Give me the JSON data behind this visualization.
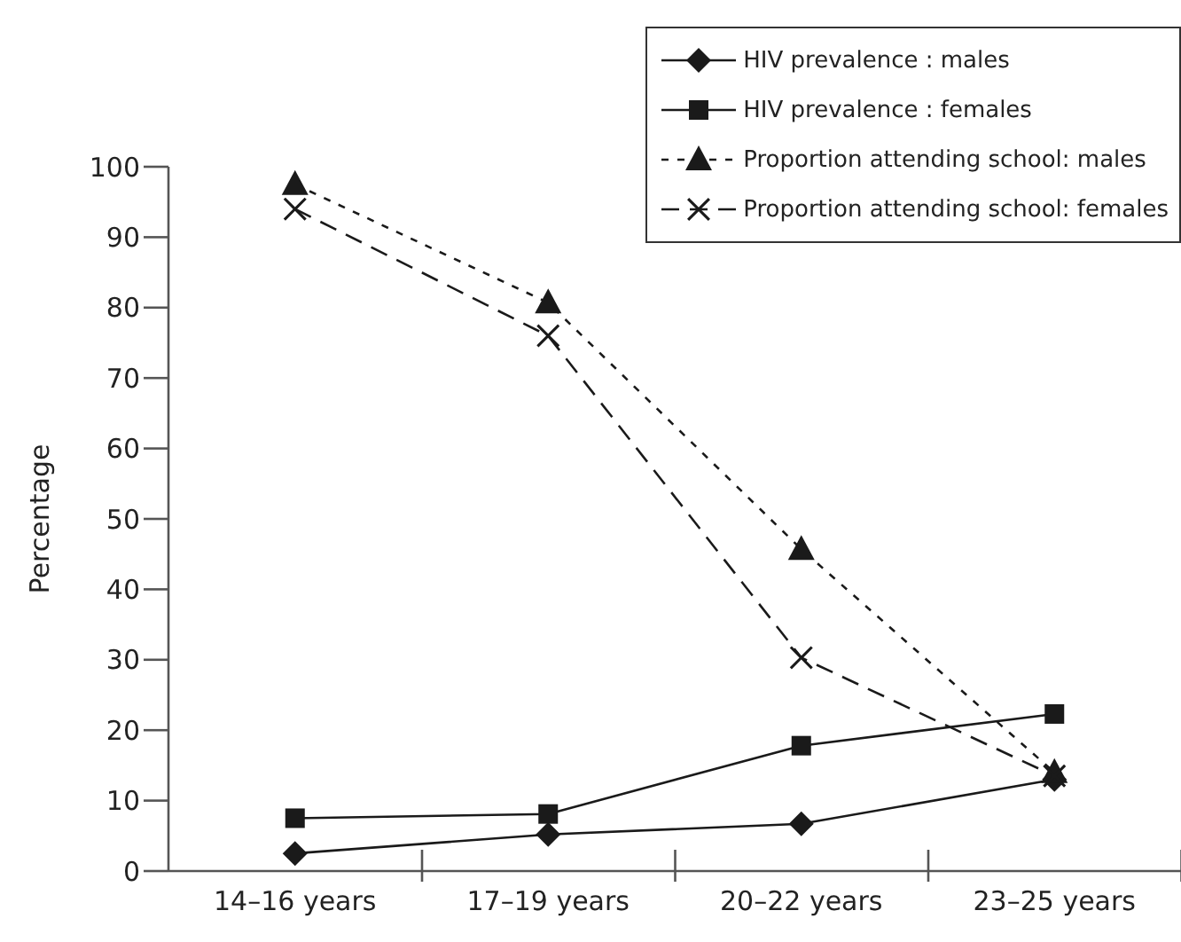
{
  "chart_data": {
    "type": "line",
    "ylabel": "Percentage",
    "categories": [
      "14–16 years",
      "17–19 years",
      "20–22 years",
      "23–25 years"
    ],
    "series": [
      {
        "name": "HIV prevalence : males",
        "color": "#1a1a1a",
        "marker": "diamond",
        "line_style": "solid",
        "values": [
          2.5,
          5.2,
          6.7,
          13
        ]
      },
      {
        "name": "HIV prevalence : females",
        "color": "#1a1a1a",
        "marker": "square",
        "line_style": "solid",
        "values": [
          7.5,
          8.1,
          17.8,
          22.3
        ]
      },
      {
        "name": "Proportion attending school: males",
        "color": "#1a1a1a",
        "marker": "triangle",
        "line_style": "dotted",
        "values": [
          97.5,
          80.7,
          45.7,
          14
        ]
      },
      {
        "name": "Proportion attending school: females",
        "color": "#1a1a1a",
        "marker": "cross",
        "line_style": "dashed",
        "values": [
          94,
          76,
          30.3,
          13.5
        ]
      }
    ],
    "ylim": [
      0,
      100
    ],
    "yticks": [
      0,
      10,
      20,
      30,
      40,
      50,
      60,
      70,
      80,
      90,
      100
    ],
    "grid": false,
    "legend": "top right"
  }
}
